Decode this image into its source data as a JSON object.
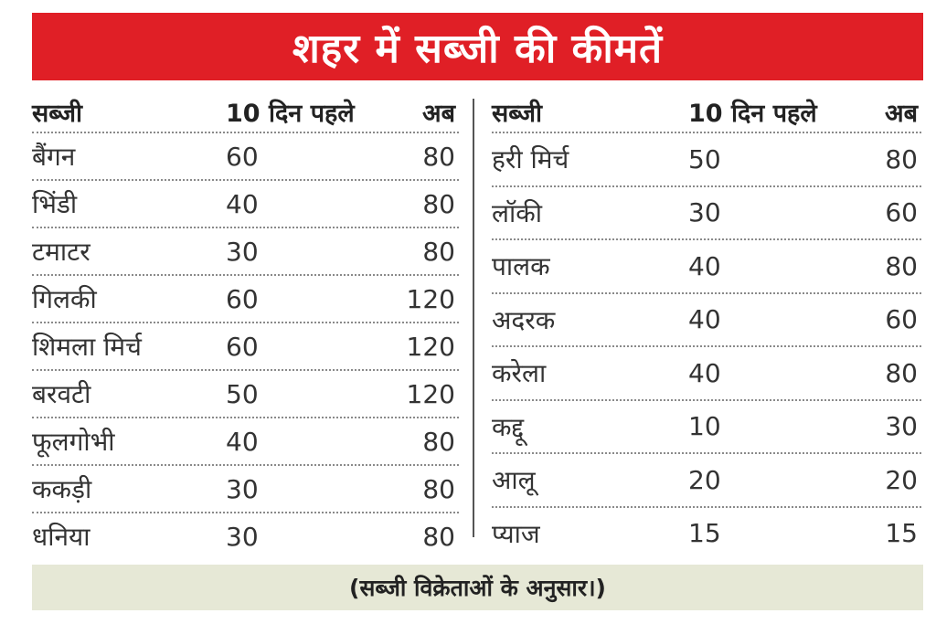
{
  "title": "शहर में सब्जी की कीमतें",
  "headers": {
    "vegetable": "सब्जी",
    "before": "10 दिन पहले",
    "now": "अब"
  },
  "left": [
    {
      "name": "बैंगन",
      "before": "60",
      "now": "80"
    },
    {
      "name": "भिंडी",
      "before": "40",
      "now": "80"
    },
    {
      "name": "टमाटर",
      "before": "30",
      "now": "80"
    },
    {
      "name": "गिलकी",
      "before": "60",
      "now": "120"
    },
    {
      "name": "शिमला मिर्च",
      "before": "60",
      "now": "120"
    },
    {
      "name": "बरवटी",
      "before": "50",
      "now": "120"
    },
    {
      "name": "फूलगोभी",
      "before": "40",
      "now": "80"
    },
    {
      "name": "ककड़ी",
      "before": "30",
      "now": "80"
    },
    {
      "name": "धनिया",
      "before": "30",
      "now": "80"
    }
  ],
  "right": [
    {
      "name": "हरी मिर्च",
      "before": "50",
      "now": "80"
    },
    {
      "name": "लॉकी",
      "before": "30",
      "now": "60"
    },
    {
      "name": "पालक",
      "before": "40",
      "now": "80"
    },
    {
      "name": "अदरक",
      "before": "40",
      "now": "60"
    },
    {
      "name": "करेला",
      "before": "40",
      "now": "80"
    },
    {
      "name": "कद्दू",
      "before": "10",
      "now": "30"
    },
    {
      "name": "आलू",
      "before": "20",
      "now": "20"
    },
    {
      "name": "प्याज",
      "before": "15",
      "now": "15"
    }
  ],
  "footer": "(सब्जी विक्रेताओं के अनुसार।)",
  "colors": {
    "banner": "#e01f26",
    "footer_bg": "#e6e8d6"
  }
}
